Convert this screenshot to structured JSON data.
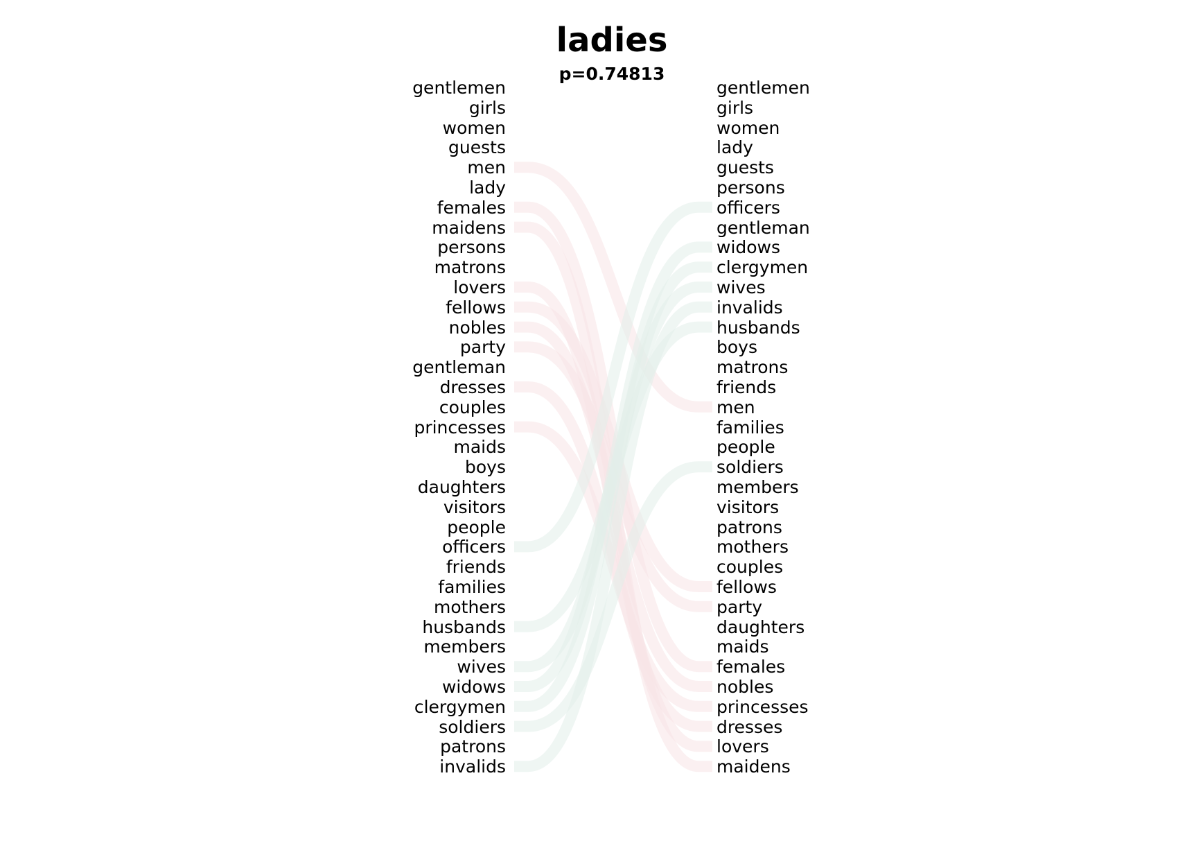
{
  "title": "ladies",
  "subtitle": "p=0.74813",
  "colors": {
    "left_band": "#f7e4e6",
    "right_band": "#e2efe9",
    "mid_band": "#fbf9e6"
  },
  "left_words": [
    "gentlemen",
    "girls",
    "women",
    "guests",
    "men",
    "lady",
    "females",
    "maidens",
    "persons",
    "matrons",
    "lovers",
    "fellows",
    "nobles",
    "party",
    "gentleman",
    "dresses",
    "couples",
    "princesses",
    "maids",
    "boys",
    "daughters",
    "visitors",
    "people",
    "officers",
    "friends",
    "families",
    "mothers",
    "husbands",
    "members",
    "wives",
    "widows",
    "clergymen",
    "soldiers",
    "patrons",
    "invalids"
  ],
  "right_words": [
    "gentlemen",
    "girls",
    "women",
    "lady",
    "guests",
    "persons",
    "officers",
    "gentleman",
    "widows",
    "clergymen",
    "wives",
    "invalids",
    "husbands",
    "boys",
    "matrons",
    "friends",
    "men",
    "families",
    "people",
    "soldiers",
    "members",
    "visitors",
    "patrons",
    "mothers",
    "couples",
    "fellows",
    "party",
    "daughters",
    "maids",
    "females",
    "nobles",
    "princesses",
    "dresses",
    "lovers",
    "maidens"
  ]
}
